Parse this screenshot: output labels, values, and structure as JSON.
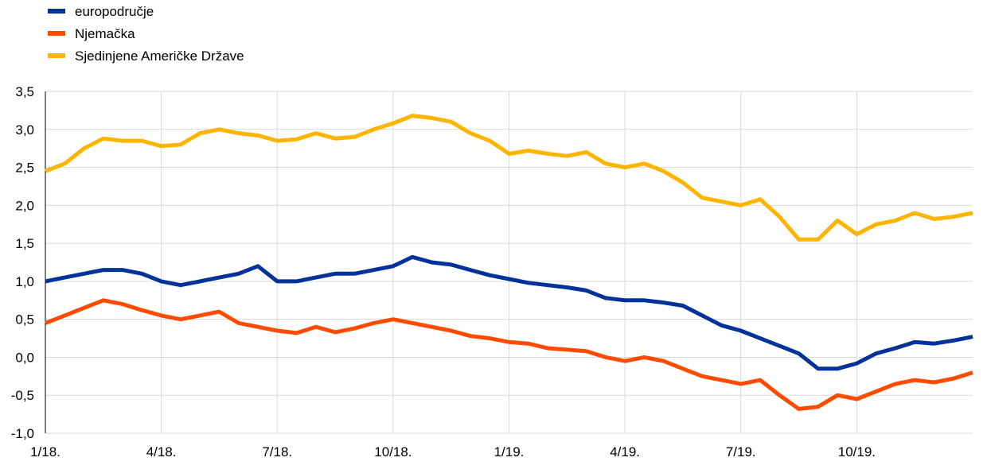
{
  "chart_data": {
    "type": "line",
    "categories": [
      "1/18.",
      null,
      null,
      null,
      null,
      null,
      "4/18.",
      null,
      null,
      null,
      null,
      null,
      "7/18.",
      null,
      null,
      null,
      null,
      null,
      "10/18.",
      null,
      null,
      null,
      null,
      null,
      "1/19.",
      null,
      null,
      null,
      null,
      null,
      "4/19.",
      null,
      null,
      null,
      null,
      null,
      "7/19.",
      null,
      null,
      null,
      null,
      null,
      "10/19.",
      null,
      null,
      null,
      null,
      null,
      null
    ],
    "series": [
      {
        "name": "europodručje",
        "color": "#003299",
        "values": [
          1.0,
          1.05,
          1.1,
          1.15,
          1.15,
          1.1,
          1.0,
          0.95,
          1.0,
          1.05,
          1.1,
          1.2,
          1.0,
          1.0,
          1.05,
          1.1,
          1.1,
          1.15,
          1.2,
          1.32,
          1.25,
          1.22,
          1.15,
          1.08,
          1.03,
          0.98,
          0.95,
          0.92,
          0.88,
          0.78,
          0.75,
          0.75,
          0.72,
          0.68,
          0.55,
          0.42,
          0.35,
          0.25,
          0.15,
          0.05,
          -0.15,
          -0.15,
          -0.08,
          0.05,
          0.12,
          0.2,
          0.18,
          0.22,
          0.27
        ]
      },
      {
        "name": "Njemačka",
        "color": "#ff4b00",
        "values": [
          0.45,
          0.55,
          0.65,
          0.75,
          0.7,
          0.62,
          0.55,
          0.5,
          0.55,
          0.6,
          0.45,
          0.4,
          0.35,
          0.32,
          0.4,
          0.33,
          0.38,
          0.45,
          0.5,
          0.45,
          0.4,
          0.35,
          0.28,
          0.25,
          0.2,
          0.18,
          0.12,
          0.1,
          0.08,
          0.0,
          -0.05,
          0.0,
          -0.05,
          -0.15,
          -0.25,
          -0.3,
          -0.35,
          -0.3,
          -0.5,
          -0.68,
          -0.65,
          -0.5,
          -0.55,
          -0.45,
          -0.35,
          -0.3,
          -0.33,
          -0.28,
          -0.2
        ]
      },
      {
        "name": "Sjedinjene Američke Države",
        "color": "#ffb400",
        "values": [
          2.45,
          2.55,
          2.75,
          2.88,
          2.85,
          2.85,
          2.78,
          2.8,
          2.95,
          3.0,
          2.95,
          2.92,
          2.85,
          2.87,
          2.95,
          2.88,
          2.9,
          3.0,
          3.08,
          3.18,
          3.15,
          3.1,
          2.95,
          2.85,
          2.68,
          2.72,
          2.68,
          2.65,
          2.7,
          2.55,
          2.5,
          2.55,
          2.45,
          2.3,
          2.1,
          2.05,
          2.0,
          2.08,
          1.85,
          1.55,
          1.55,
          1.8,
          1.62,
          1.75,
          1.8,
          1.9,
          1.82,
          1.85,
          1.9
        ]
      }
    ],
    "ylim": [
      -1.0,
      3.5
    ],
    "yticks": [
      {
        "value": -1.0,
        "label": "-1,0"
      },
      {
        "value": -0.5,
        "label": "-0,5"
      },
      {
        "value": 0.0,
        "label": "0,0"
      },
      {
        "value": 0.5,
        "label": "0,5"
      },
      {
        "value": 1.0,
        "label": "1,0"
      },
      {
        "value": 1.5,
        "label": "1,5"
      },
      {
        "value": 2.0,
        "label": "2,0"
      },
      {
        "value": 2.5,
        "label": "2,5"
      },
      {
        "value": 3.0,
        "label": "3,0"
      },
      {
        "value": 3.5,
        "label": "3,5"
      }
    ],
    "grid": true,
    "legend": "top-left"
  }
}
